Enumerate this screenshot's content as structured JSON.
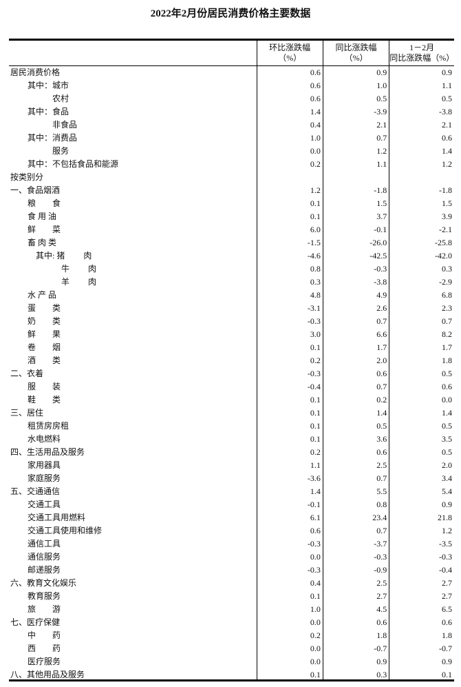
{
  "title": "2022年2月份居民消费价格主要数据",
  "headers": {
    "col1": [
      "环比涨跌幅",
      "（%）"
    ],
    "col2": [
      "同比涨跌幅",
      "（%）"
    ],
    "col3": [
      "1－2月",
      "同比涨跌幅（%）"
    ]
  },
  "rows": [
    {
      "label": "居民消费价格",
      "mom": "0.6",
      "yoy": "0.9",
      "ytd": "0.9"
    },
    {
      "label": "其中：城市",
      "mom": "0.6",
      "yoy": "1.0",
      "ytd": "1.1"
    },
    {
      "label": "农村",
      "mom": "0.6",
      "yoy": "0.5",
      "ytd": "0.5"
    },
    {
      "label": "其中：食品",
      "mom": "1.4",
      "yoy": "-3.9",
      "ytd": "-3.8"
    },
    {
      "label": "非食品",
      "mom": "0.4",
      "yoy": "2.1",
      "ytd": "2.1"
    },
    {
      "label": "其中：消费品",
      "mom": "1.0",
      "yoy": "0.7",
      "ytd": "0.6"
    },
    {
      "label": "服务",
      "mom": "0.0",
      "yoy": "1.2",
      "ytd": "1.4"
    },
    {
      "label": "其中：不包括食品和能源",
      "mom": "0.2",
      "yoy": "1.1",
      "ytd": "1.2"
    },
    {
      "label": "按类别分",
      "mom": "",
      "yoy": "",
      "ytd": ""
    },
    {
      "label": "一、食品烟酒",
      "mom": "1.2",
      "yoy": "-1.8",
      "ytd": "-1.8"
    },
    {
      "label": "粮　　食",
      "mom": "0.1",
      "yoy": "1.5",
      "ytd": "1.5"
    },
    {
      "label": "食 用 油",
      "mom": "0.1",
      "yoy": "3.7",
      "ytd": "3.9"
    },
    {
      "label": "鲜　　菜",
      "mom": "6.0",
      "yoy": "-0.1",
      "ytd": "-2.1"
    },
    {
      "label": "畜 肉 类",
      "mom": "-1.5",
      "yoy": "-26.0",
      "ytd": "-25.8"
    },
    {
      "label": "其中: 猪　　 肉",
      "mom": "-4.6",
      "yoy": "-42.5",
      "ytd": "-42.0"
    },
    {
      "label": "牛　　 肉",
      "mom": "0.8",
      "yoy": "-0.3",
      "ytd": "0.3"
    },
    {
      "label": "羊　　 肉",
      "mom": "0.3",
      "yoy": "-3.8",
      "ytd": "-2.9"
    },
    {
      "label": "水 产 品",
      "mom": "4.8",
      "yoy": "4.9",
      "ytd": "6.8"
    },
    {
      "label": "蛋　　类",
      "mom": "-3.1",
      "yoy": "2.6",
      "ytd": "2.3"
    },
    {
      "label": "奶　　类",
      "mom": "-0.3",
      "yoy": "0.7",
      "ytd": "0.7"
    },
    {
      "label": "鲜　　果",
      "mom": "3.0",
      "yoy": "6.6",
      "ytd": "8.2"
    },
    {
      "label": "卷　　烟",
      "mom": "0.1",
      "yoy": "1.7",
      "ytd": "1.7"
    },
    {
      "label": "酒　　类",
      "mom": "0.2",
      "yoy": "2.0",
      "ytd": "1.8"
    },
    {
      "label": "二、衣着",
      "mom": "-0.3",
      "yoy": "0.6",
      "ytd": "0.5"
    },
    {
      "label": "服　　装",
      "mom": "-0.4",
      "yoy": "0.7",
      "ytd": "0.6"
    },
    {
      "label": "鞋　　类",
      "mom": "0.1",
      "yoy": "0.2",
      "ytd": "0.0"
    },
    {
      "label": "三、居住",
      "mom": "0.1",
      "yoy": "1.4",
      "ytd": "1.4"
    },
    {
      "label": "租赁房房租",
      "mom": "0.1",
      "yoy": "0.5",
      "ytd": "0.5"
    },
    {
      "label": "水电燃料",
      "mom": "0.1",
      "yoy": "3.6",
      "ytd": "3.5"
    },
    {
      "label": "四、生活用品及服务",
      "mom": "0.2",
      "yoy": "0.6",
      "ytd": "0.5"
    },
    {
      "label": "家用器具",
      "mom": "1.1",
      "yoy": "2.5",
      "ytd": "2.0"
    },
    {
      "label": "家庭服务",
      "mom": "-3.6",
      "yoy": "0.7",
      "ytd": "3.4"
    },
    {
      "label": "五、交通通信",
      "mom": "1.4",
      "yoy": "5.5",
      "ytd": "5.4"
    },
    {
      "label": "交通工具",
      "mom": "-0.1",
      "yoy": "0.8",
      "ytd": "0.9"
    },
    {
      "label": "交通工具用燃料",
      "mom": "6.1",
      "yoy": "23.4",
      "ytd": "21.8"
    },
    {
      "label": "交通工具使用和维修",
      "mom": "0.6",
      "yoy": "0.7",
      "ytd": "1.2"
    },
    {
      "label": "通信工具",
      "mom": "-0.3",
      "yoy": "-3.7",
      "ytd": "-3.5"
    },
    {
      "label": "通信服务",
      "mom": "0.0",
      "yoy": "-0.3",
      "ytd": "-0.3"
    },
    {
      "label": "邮递服务",
      "mom": "-0.3",
      "yoy": "-0.9",
      "ytd": "-0.4"
    },
    {
      "label": "六、教育文化娱乐",
      "mom": "0.4",
      "yoy": "2.5",
      "ytd": "2.7"
    },
    {
      "label": "教育服务",
      "mom": "0.1",
      "yoy": "2.7",
      "ytd": "2.7"
    },
    {
      "label": "旅　　游",
      "mom": "1.0",
      "yoy": "4.5",
      "ytd": "6.5"
    },
    {
      "label": "七、医疗保健",
      "mom": "0.0",
      "yoy": "0.6",
      "ytd": "0.6"
    },
    {
      "label": "中　　药",
      "mom": "0.2",
      "yoy": "1.8",
      "ytd": "1.8"
    },
    {
      "label": "西　　药",
      "mom": "0.0",
      "yoy": "-0.7",
      "ytd": "-0.7"
    },
    {
      "label": "医疗服务",
      "mom": "0.0",
      "yoy": "0.9",
      "ytd": "0.9"
    },
    {
      "label": "八、其他用品及服务",
      "mom": "0.1",
      "yoy": "0.3",
      "ytd": "0.1"
    }
  ]
}
